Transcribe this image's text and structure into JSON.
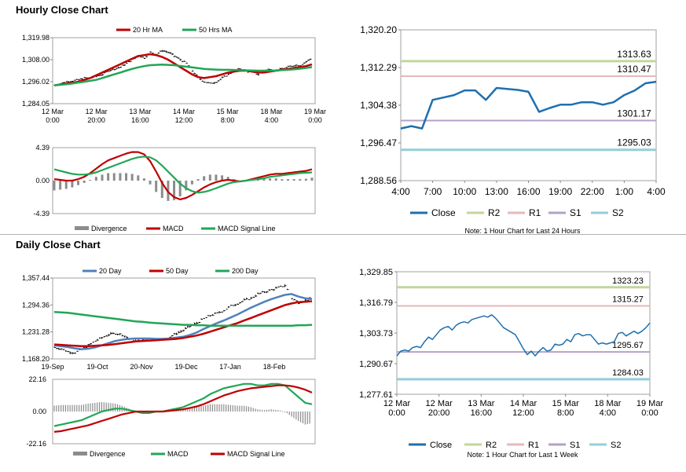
{
  "colors": {
    "close": "#1f6fae",
    "r2": "#c3d69b",
    "r1": "#e6b9b8",
    "s1": "#b3a2c7",
    "s2": "#93cddd",
    "red": "#c00000",
    "green": "#21a656",
    "blue": "#4f81bd",
    "bars": "#8c8c8c"
  },
  "hourly": {
    "title": "Hourly Close Chart",
    "note": "Note: 1 Hour Chart for Last 24 Hours"
  },
  "daily": {
    "title": "Daily Close Chart",
    "note": "Note: 1 Hour Chart for Last 1 Week"
  },
  "chart_data": [
    {
      "id": "hourly-price",
      "type": "line",
      "title": "Hourly Close Chart",
      "legend": [
        "20 Hr MA",
        "50 Hrs MA"
      ],
      "legend_colors": [
        "red",
        "green"
      ],
      "yticks": [
        "1,319.98",
        "1,308.00",
        "1,296.02",
        "1,284.05"
      ],
      "ytick_values": [
        1319.98,
        1308.0,
        1296.02,
        1284.05
      ],
      "ylim": [
        1284.05,
        1319.98
      ],
      "xticks": [
        [
          "12 Mar",
          "0:00"
        ],
        [
          "12 Mar",
          "20:00"
        ],
        [
          "13 Mar",
          "16:00"
        ],
        [
          "14 Mar",
          "12:00"
        ],
        [
          "15 Mar",
          "8:00"
        ],
        [
          "18 Mar",
          "4:00"
        ],
        [
          "19 Mar",
          "0:00"
        ]
      ],
      "price": [
        1294,
        1295,
        1296,
        1296.5,
        1297,
        1298,
        1298,
        1299,
        1300,
        1302,
        1303,
        1304,
        1306,
        1308,
        1310,
        1309,
        1312,
        1311,
        1313,
        1312,
        1310,
        1308,
        1306,
        1302,
        1298,
        1296,
        1295,
        1296,
        1298,
        1300,
        1302,
        1303,
        1302,
        1301,
        1300,
        1302,
        1303,
        1302,
        1303,
        1304,
        1305,
        1305,
        1307,
        1309
      ],
      "series": [
        {
          "name": "20 Hr MA",
          "color": "red",
          "values": [
            1294,
            1294.5,
            1295,
            1295.5,
            1296,
            1297,
            1298,
            1299.5,
            1301,
            1302.5,
            1304,
            1305.5,
            1307,
            1308.5,
            1310,
            1310.5,
            1311,
            1310.5,
            1309.5,
            1308,
            1306,
            1304,
            1302,
            1300,
            1298.5,
            1298,
            1298.5,
            1299,
            1300,
            1301,
            1301.5,
            1302,
            1302,
            1301.5,
            1301,
            1301,
            1301.5,
            1302,
            1302.5,
            1303,
            1303.5,
            1304,
            1304.5,
            1305.5
          ]
        },
        {
          "name": "50 Hrs MA",
          "color": "green",
          "values": [
            1294,
            1294.3,
            1294.6,
            1295,
            1295.5,
            1296,
            1296.5,
            1297,
            1298,
            1299,
            1300,
            1301,
            1302,
            1303,
            1303.8,
            1304.5,
            1305,
            1305.2,
            1305.3,
            1305.2,
            1305,
            1304.6,
            1304.2,
            1303.8,
            1303.4,
            1303,
            1302.8,
            1302.6,
            1302.5,
            1302.5,
            1302.4,
            1302.3,
            1302.2,
            1302.1,
            1302,
            1302,
            1302,
            1302.1,
            1302.3,
            1302.5,
            1302.8,
            1303.1,
            1303.5,
            1304
          ]
        }
      ]
    },
    {
      "id": "hourly-macd",
      "type": "line",
      "legend": [
        "Divergence",
        "MACD",
        "MACD Signal Line"
      ],
      "legend_colors": [
        "bars",
        "red",
        "green"
      ],
      "yticks": [
        "4.39",
        "0.00",
        "-4.39"
      ],
      "ytick_values": [
        4.39,
        0.0,
        -4.39
      ],
      "ylim": [
        -4.39,
        4.39
      ],
      "series": [
        {
          "name": "MACD",
          "color": "red",
          "values": [
            0.2,
            0.1,
            0,
            0,
            0.2,
            0.5,
            1,
            1.6,
            2.2,
            2.7,
            3,
            3.3,
            3.6,
            3.8,
            3.8,
            3.5,
            2.6,
            1.2,
            -0.3,
            -1.5,
            -2.2,
            -2.5,
            -2.3,
            -1.9,
            -1.4,
            -0.9,
            -0.5,
            -0.2,
            0,
            0.1,
            0,
            -0.1,
            0,
            0.2,
            0.4,
            0.6,
            0.8,
            0.9,
            0.9,
            1,
            1.1,
            1.2,
            1.3,
            1.5
          ]
        },
        {
          "name": "MACD Signal Line",
          "color": "green",
          "values": [
            1.5,
            1.3,
            1.1,
            0.9,
            0.8,
            0.8,
            0.9,
            1.1,
            1.4,
            1.7,
            2,
            2.3,
            2.6,
            2.9,
            3.1,
            3.2,
            3.1,
            2.7,
            2,
            1.2,
            0.4,
            -0.4,
            -1,
            -1.4,
            -1.6,
            -1.5,
            -1.3,
            -1,
            -0.7,
            -0.4,
            -0.2,
            -0.1,
            0,
            0.1,
            0.2,
            0.3,
            0.5,
            0.6,
            0.7,
            0.8,
            0.9,
            1,
            1.05,
            1.1
          ]
        },
        {
          "name": "Divergence",
          "color": "bars",
          "values": [
            -1.3,
            -1.2,
            -1.1,
            -0.9,
            -0.6,
            -0.3,
            0.1,
            0.5,
            0.8,
            1,
            1,
            1,
            1,
            0.9,
            0.7,
            0.3,
            -0.5,
            -1.5,
            -2.3,
            -2.7,
            -2.6,
            -2.1,
            -1.3,
            -0.5,
            0.2,
            0.6,
            0.8,
            0.8,
            0.7,
            0.5,
            0.2,
            0,
            0,
            0.1,
            0.2,
            0.3,
            0.3,
            0.3,
            0.2,
            0.2,
            0.2,
            0.2,
            0.25,
            0.4
          ]
        }
      ]
    },
    {
      "id": "hourly-close",
      "type": "line",
      "yticks": [
        "1,320.20",
        "1,312.29",
        "1,304.38",
        "1,296.47",
        "1,288.56"
      ],
      "ytick_values": [
        1320.2,
        1312.29,
        1304.38,
        1296.47,
        1288.56
      ],
      "ylim": [
        1288.56,
        1320.2
      ],
      "xticks": [
        "4:00",
        "7:00",
        "10:00",
        "13:00",
        "16:00",
        "19:00",
        "22:00",
        "1:00",
        "4:00"
      ],
      "close_x": [
        0,
        1,
        2,
        3,
        4,
        5,
        6,
        7,
        8,
        9,
        10,
        11,
        12,
        13,
        14,
        15,
        16,
        17,
        18,
        19,
        20,
        21,
        22,
        23,
        24
      ],
      "close": [
        1299.5,
        1300,
        1299.5,
        1305.5,
        1306,
        1306.5,
        1307.5,
        1307.5,
        1305.5,
        1308,
        1307.8,
        1307.6,
        1307.2,
        1303,
        1303.8,
        1304.5,
        1304.5,
        1305,
        1305,
        1304.5,
        1305,
        1306.5,
        1307.5,
        1309,
        1309.3
      ],
      "levels": [
        {
          "name": "R2",
          "value": 1313.63,
          "label": "1313.63",
          "color": "r2"
        },
        {
          "name": "R1",
          "value": 1310.47,
          "label": "1310.47",
          "color": "r1"
        },
        {
          "name": "S1",
          "value": 1301.17,
          "label": "1301.17",
          "color": "s1"
        },
        {
          "name": "S2",
          "value": 1295.03,
          "label": "1295.03",
          "color": "s2"
        }
      ],
      "legend": [
        "Close",
        "R2",
        "R1",
        "S1",
        "S2"
      ],
      "legend_colors": [
        "close",
        "r2",
        "r1",
        "s1",
        "s2"
      ]
    },
    {
      "id": "daily-price",
      "type": "line",
      "title": "Daily Close Chart",
      "legend": [
        "20 Day",
        "50 Day",
        "200 Day"
      ],
      "legend_colors": [
        "blue",
        "red",
        "green"
      ],
      "yticks": [
        "1,357.44",
        "1,294.36",
        "1,231.28",
        "1,168.20"
      ],
      "ytick_values": [
        1357.44,
        1294.36,
        1231.28,
        1168.2
      ],
      "ylim": [
        1168.2,
        1357.44
      ],
      "xticks": [
        "19-Sep",
        "19-Oct",
        "20-Nov",
        "19-Dec",
        "17-Jan",
        "18-Feb"
      ],
      "price": [
        1195,
        1192,
        1185,
        1183,
        1190,
        1200,
        1210,
        1218,
        1225,
        1228,
        1225,
        1215,
        1210,
        1212,
        1213,
        1215,
        1214,
        1220,
        1228,
        1235,
        1245,
        1252,
        1262,
        1270,
        1275,
        1282,
        1292,
        1298,
        1305,
        1310,
        1320,
        1325,
        1330,
        1335,
        1340,
        1310,
        1300,
        1305,
        1310
      ],
      "series": [
        {
          "name": "20 Day",
          "color": "blue",
          "values": [
            1200,
            1198,
            1196,
            1193,
            1191,
            1192,
            1195,
            1200,
            1205,
            1210,
            1213,
            1215,
            1216,
            1216,
            1216,
            1215,
            1215,
            1216,
            1218,
            1220,
            1224,
            1230,
            1238,
            1245,
            1252,
            1258,
            1265,
            1272,
            1280,
            1288,
            1295,
            1302,
            1308,
            1313,
            1318,
            1320,
            1314,
            1310,
            1308
          ]
        },
        {
          "name": "50 Day",
          "color": "red",
          "values": [
            1202,
            1201,
            1200,
            1199,
            1198,
            1198,
            1199,
            1200,
            1201,
            1203,
            1205,
            1207,
            1209,
            1210,
            1211,
            1212,
            1213,
            1214,
            1215,
            1217,
            1220,
            1223,
            1227,
            1232,
            1237,
            1242,
            1247,
            1252,
            1258,
            1264,
            1270,
            1276,
            1282,
            1288,
            1294,
            1298,
            1301,
            1302,
            1303
          ]
        },
        {
          "name": "200 Day",
          "color": "green",
          "values": [
            1278,
            1277,
            1276,
            1274,
            1272,
            1270,
            1268,
            1266,
            1264,
            1262,
            1260,
            1258,
            1256,
            1255,
            1253,
            1252,
            1251,
            1250,
            1249,
            1248,
            1248,
            1247,
            1247,
            1246,
            1246,
            1246,
            1246,
            1246,
            1246,
            1246,
            1246,
            1246,
            1246,
            1246,
            1246,
            1246,
            1247,
            1247,
            1248
          ]
        }
      ]
    },
    {
      "id": "daily-macd",
      "type": "line",
      "legend": [
        "Divergence",
        "MACD",
        "MACD Signal Line"
      ],
      "legend_colors": [
        "bars",
        "green",
        "red"
      ],
      "yticks": [
        "22.16",
        "0.00",
        "-22.16"
      ],
      "ytick_values": [
        22.16,
        0.0,
        -22.16
      ],
      "ylim": [
        -22.16,
        22.16
      ],
      "series": [
        {
          "name": "MACD",
          "color": "green",
          "values": [
            -10,
            -9,
            -8,
            -7,
            -6,
            -4,
            -2,
            0,
            1,
            2,
            2,
            1,
            0,
            -1,
            -1,
            0,
            0,
            1,
            2,
            3,
            5,
            7,
            9,
            12,
            14,
            16,
            17,
            18,
            19,
            19,
            18,
            18,
            19,
            19,
            18,
            14,
            10,
            6,
            5
          ]
        },
        {
          "name": "MACD Signal Line",
          "color": "red",
          "values": [
            -14,
            -13.5,
            -12.5,
            -11.5,
            -10.5,
            -9.5,
            -8,
            -6.5,
            -5,
            -3.5,
            -2,
            -1,
            0,
            0,
            0,
            0,
            0,
            0.5,
            1,
            1.5,
            2.5,
            3.5,
            5,
            7,
            9,
            11,
            12.5,
            14,
            15,
            16,
            16.5,
            17,
            17.5,
            18,
            18,
            17.5,
            16.5,
            15,
            13
          ]
        },
        {
          "name": "Divergence",
          "color": "bars",
          "values": [
            4,
            4.5,
            4.5,
            4.5,
            4.5,
            5.5,
            6,
            6.5,
            6,
            5.5,
            4,
            2,
            0,
            -1,
            -1,
            0,
            0,
            0.5,
            1,
            1.5,
            2.5,
            3.5,
            4,
            5,
            5,
            5,
            4.5,
            4,
            4,
            3,
            1.5,
            1,
            1.5,
            1,
            0,
            -3.5,
            -6.5,
            -9,
            -8
          ]
        }
      ]
    },
    {
      "id": "daily-close",
      "type": "line",
      "yticks": [
        "1,329.85",
        "1,316.79",
        "1,303.73",
        "1,290.67",
        "1,277.61"
      ],
      "ytick_values": [
        1329.85,
        1316.79,
        1303.73,
        1290.67,
        1277.61
      ],
      "ylim": [
        1277.61,
        1329.85
      ],
      "xticks": [
        [
          "12 Mar",
          "0:00"
        ],
        [
          "12 Mar",
          "20:00"
        ],
        [
          "13 Mar",
          "16:00"
        ],
        [
          "14 Mar",
          "12:00"
        ],
        [
          "15 Mar",
          "8:00"
        ],
        [
          "18 Mar",
          "4:00"
        ],
        [
          "19 Mar",
          "0:00"
        ]
      ],
      "close": [
        1294,
        1296,
        1296.5,
        1296,
        1297.5,
        1298,
        1297.5,
        1300,
        1302,
        1301,
        1303,
        1305,
        1306,
        1306.5,
        1305,
        1307,
        1308,
        1308.5,
        1308,
        1309.5,
        1310,
        1310.5,
        1311,
        1310.5,
        1311.5,
        1310,
        1308,
        1306,
        1305,
        1304,
        1303,
        1300,
        1297,
        1294.5,
        1296,
        1294,
        1296,
        1297.5,
        1296,
        1296.5,
        1299,
        1298.5,
        1299,
        1301,
        1300,
        1303,
        1303.5,
        1302.5,
        1303,
        1303,
        1301,
        1299,
        1299.5,
        1299,
        1299.5,
        1300,
        1303.5,
        1304,
        1302.5,
        1303.5,
        1304.5,
        1303.5,
        1304.5,
        1306,
        1308
      ],
      "levels": [
        {
          "name": "R2",
          "value": 1323.23,
          "label": "1323.23",
          "color": "r2"
        },
        {
          "name": "R1",
          "value": 1315.27,
          "label": "1315.27",
          "color": "r1"
        },
        {
          "name": "S1",
          "value": 1295.67,
          "label": "1295.67",
          "color": "s1"
        },
        {
          "name": "S2",
          "value": 1284.03,
          "label": "1284.03",
          "color": "s2"
        }
      ],
      "legend": [
        "Close",
        "R2",
        "R1",
        "S1",
        "S2"
      ],
      "legend_colors": [
        "close",
        "r2",
        "r1",
        "s1",
        "s2"
      ]
    }
  ]
}
